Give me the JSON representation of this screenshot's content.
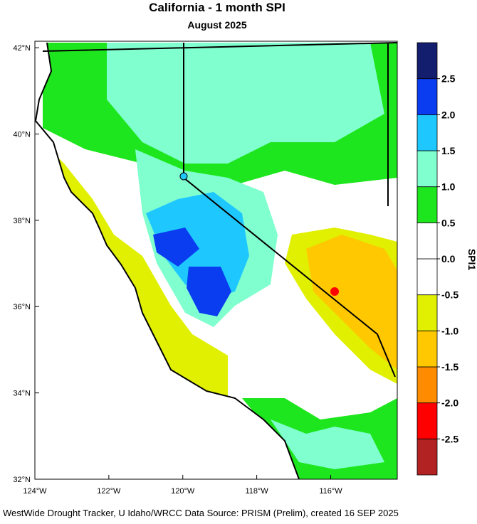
{
  "title": "California - 1 month SPI",
  "subtitle": "August 2025",
  "map": {
    "latlim": [
      32,
      42.15
    ],
    "lonlim": [
      -124,
      -114.2
    ],
    "lat_ticks": [
      {
        "value": 42,
        "label": "42°N"
      },
      {
        "value": 40,
        "label": "40°N"
      },
      {
        "value": 38,
        "label": "38°N"
      },
      {
        "value": 36,
        "label": "36°N"
      },
      {
        "value": 34,
        "label": "34°N"
      },
      {
        "value": 32,
        "label": "32°N"
      }
    ],
    "lon_ticks": [
      {
        "value": -124,
        "label": "124°W"
      },
      {
        "value": -122,
        "label": "122°W"
      },
      {
        "value": -120,
        "label": "120°W"
      },
      {
        "value": -118,
        "label": "118°W"
      },
      {
        "value": -116,
        "label": "116°W"
      }
    ]
  },
  "colorbar": {
    "title": "SPI1",
    "clim": [
      -3,
      3
    ],
    "colors": [
      "#b22222",
      "#ff0000",
      "#ff8c00",
      "#ffc800",
      "#e0f000",
      "#ffffff",
      "#ffffff",
      "#1ee61e",
      "#80ffcf",
      "#1ec8ff",
      "#0a3cf0",
      "#141e6e"
    ],
    "ticks": [
      2.5,
      {
        "value": 2,
        "label": "2.0"
      },
      1.5,
      {
        "value": 1,
        "label": "1.0"
      },
      0.5,
      {
        "value": 0,
        "label": "0.0"
      },
      -0.5,
      {
        "value": -1,
        "label": "-1.0"
      },
      -1.5,
      {
        "value": -2,
        "label": "-2.0"
      },
      -2.5
    ]
  },
  "footer": "WestWide Drought Tracker, U Idaho/WRCC Data Source: PRISM (Prelim), created 16 SEP 2025"
}
